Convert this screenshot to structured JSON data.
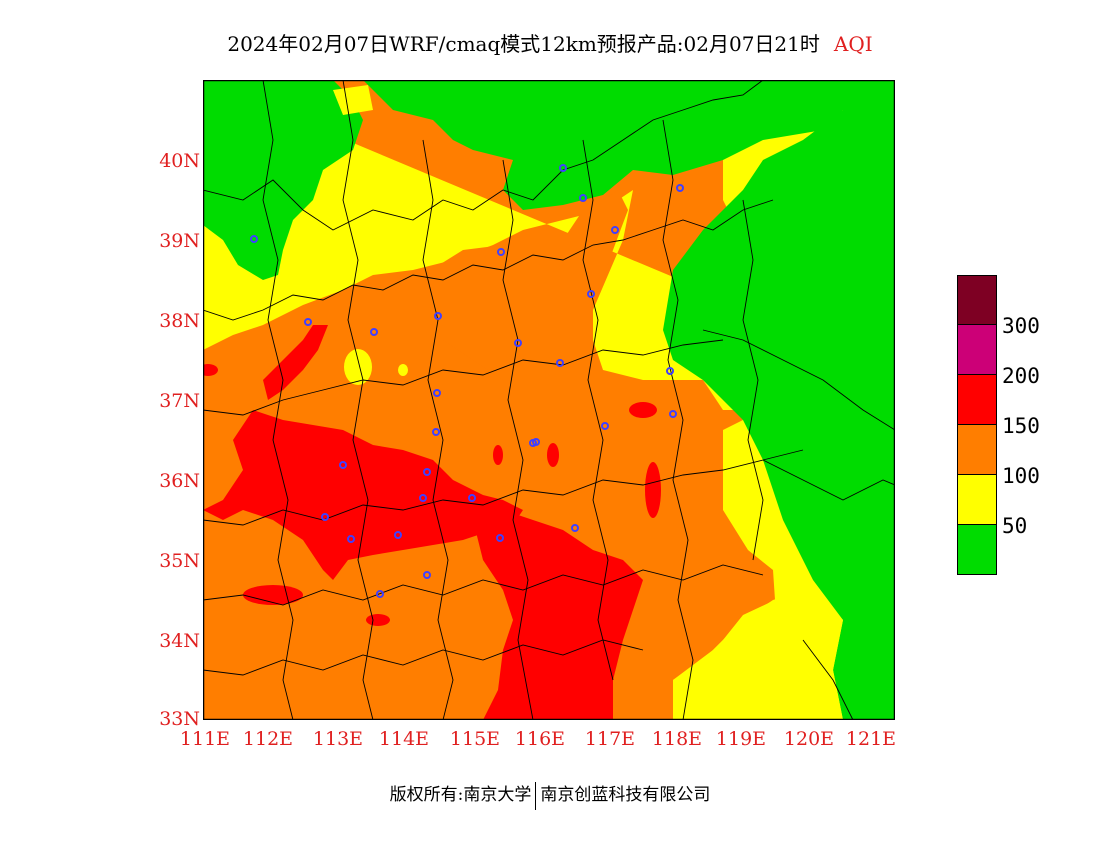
{
  "title": {
    "main": "2024年02月07日WRF/cmaq模式12km预报产品:02月07日21时",
    "variable": "AQI"
  },
  "map": {
    "lat_labels": [
      "40N",
      "39N",
      "38N",
      "37N",
      "36N",
      "35N",
      "34N",
      "33N"
    ],
    "lon_labels": [
      "111E",
      "112E",
      "113E",
      "114E",
      "115E",
      "116E",
      "117E",
      "118E",
      "119E",
      "120E",
      "121E"
    ],
    "level_colors": {
      "lt50": "#00dc00",
      "50_100": "#ffff00",
      "100_150": "#ff7e00",
      "150_200": "#ff0000",
      "200_300": "#cc0077",
      "gt300": "#7e0023"
    },
    "station_color": "#4040ff"
  },
  "legend": {
    "labels": [
      "300",
      "200",
      "150",
      "100",
      "50"
    ],
    "colors": [
      "#7e0023",
      "#cc0077",
      "#ff0000",
      "#ff7e00",
      "#ffff00",
      "#00dc00"
    ]
  },
  "footer": {
    "left": "版权所有:南京大学",
    "right": "南京创蓝科技有限公司"
  }
}
